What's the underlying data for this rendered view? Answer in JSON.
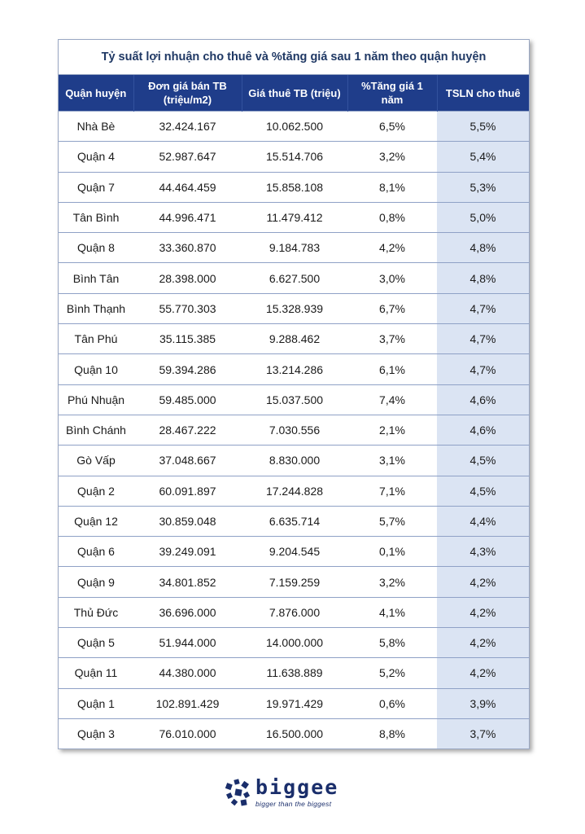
{
  "title": "Tỷ suất lợi nhuận cho thuê và %tăng giá sau 1 năm theo quận huyện",
  "headers": [
    "Quận huyện",
    "Đơn giá bán TB (triệu/m2)",
    "Giá thuê TB (triệu)",
    "%Tăng giá 1 năm",
    "TSLN cho thuê"
  ],
  "rows": [
    [
      "Nhà Bè",
      "32.424.167",
      "10.062.500",
      "6,5%",
      "5,5%"
    ],
    [
      "Quận 4",
      "52.987.647",
      "15.514.706",
      "3,2%",
      "5,4%"
    ],
    [
      "Quận 7",
      "44.464.459",
      "15.858.108",
      "8,1%",
      "5,3%"
    ],
    [
      "Tân Bình",
      "44.996.471",
      "11.479.412",
      "0,8%",
      "5,0%"
    ],
    [
      "Quận 8",
      "33.360.870",
      "9.184.783",
      "4,2%",
      "4,8%"
    ],
    [
      "Bình Tân",
      "28.398.000",
      "6.627.500",
      "3,0%",
      "4,8%"
    ],
    [
      "Bình Thạnh",
      "55.770.303",
      "15.328.939",
      "6,7%",
      "4,7%"
    ],
    [
      "Tân Phú",
      "35.115.385",
      "9.288.462",
      "3,7%",
      "4,7%"
    ],
    [
      "Quận 10",
      "59.394.286",
      "13.214.286",
      "6,1%",
      "4,7%"
    ],
    [
      "Phú Nhuận",
      "59.485.000",
      "15.037.500",
      "7,4%",
      "4,6%"
    ],
    [
      "Bình Chánh",
      "28.467.222",
      "7.030.556",
      "2,1%",
      "4,6%"
    ],
    [
      "Gò Vấp",
      "37.048.667",
      "8.830.000",
      "3,1%",
      "4,5%"
    ],
    [
      "Quận 2",
      "60.091.897",
      "17.244.828",
      "7,1%",
      "4,5%"
    ],
    [
      "Quận 12",
      "30.859.048",
      "6.635.714",
      "5,7%",
      "4,4%"
    ],
    [
      "Quận 6",
      "39.249.091",
      "9.204.545",
      "0,1%",
      "4,3%"
    ],
    [
      "Quận 9",
      "34.801.852",
      "7.159.259",
      "3,2%",
      "4,2%"
    ],
    [
      "Thủ Đức",
      "36.696.000",
      "7.876.000",
      "4,1%",
      "4,2%"
    ],
    [
      "Quận 5",
      "51.944.000",
      "14.000.000",
      "5,8%",
      "4,2%"
    ],
    [
      "Quận 11",
      "44.380.000",
      "11.638.889",
      "5,2%",
      "4,2%"
    ],
    [
      "Quận 1",
      "102.891.429",
      "19.971.429",
      "0,6%",
      "3,9%"
    ],
    [
      "Quận 3",
      "76.010.000",
      "16.500.000",
      "8,8%",
      "3,7%"
    ]
  ],
  "logo": {
    "word": "biggee",
    "tagline": "bigger than the biggest"
  },
  "colors": {
    "header_bg": "#1f3d8a",
    "highlight_col": "#dbe4f3",
    "title_text": "#1f3864"
  }
}
